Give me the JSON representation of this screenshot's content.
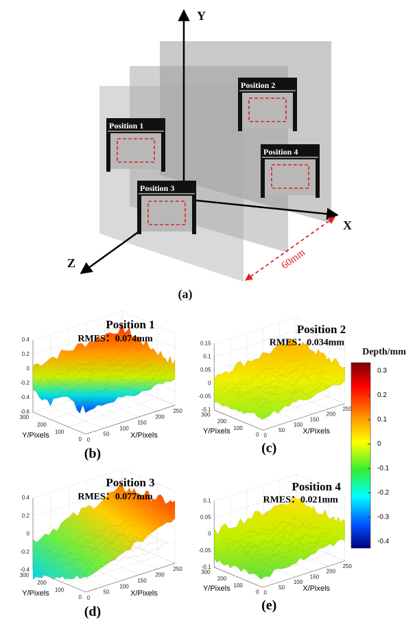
{
  "diagram": {
    "axes": {
      "y": "Y",
      "x": "X",
      "z": "Z"
    },
    "positions": [
      "Position 1",
      "Position 2",
      "Position 3",
      "Position 4"
    ],
    "distance": "60mm",
    "caption": "(a)"
  },
  "panels": [
    {
      "title": "Position 1",
      "rmes": "RMES：0.074mm",
      "zticks": [
        "0.4",
        "0.2",
        "0",
        "-0.2",
        "-0.4",
        "-0.6"
      ],
      "yticks": [
        "300",
        "200",
        "100",
        "0"
      ],
      "xticks": [
        "0",
        "50",
        "100",
        "150",
        "200",
        "250"
      ],
      "ylabel": "Y/Pixels",
      "xlabel": "X/Pixels",
      "caption": "(b)"
    },
    {
      "title": "Position 2",
      "rmes": "RMES：0.034mm",
      "zticks": [
        "0.15",
        "0.1",
        "0.05",
        "0",
        "-0.05",
        "-0.1"
      ],
      "yticks": [
        "300",
        "200",
        "100",
        "0"
      ],
      "xticks": [
        "0",
        "50",
        "100",
        "150",
        "200",
        "250"
      ],
      "ylabel": "Y/Pixels",
      "xlabel": "X/Pixels",
      "caption": "(c)"
    },
    {
      "title": "Position 3",
      "rmes": "RMES：0.077mm",
      "zticks": [
        "0.4",
        "0.2",
        "0",
        "-0.2",
        "-0.4"
      ],
      "yticks": [
        "300",
        "200",
        "100",
        "0"
      ],
      "xticks": [
        "0",
        "50",
        "100",
        "150",
        "200",
        "250"
      ],
      "ylabel": "Y/Pixels",
      "xlabel": "X/Pixels",
      "caption": "(d)"
    },
    {
      "title": "Position 4",
      "rmes": "RMES：0.021mm",
      "zticks": [
        "0.1",
        "0.05",
        "0",
        "-0.05",
        "-0.1"
      ],
      "yticks": [
        "300",
        "200",
        "100",
        "0"
      ],
      "xticks": [
        "0",
        "50",
        "100",
        "150",
        "200",
        "250"
      ],
      "ylabel": "Y/Pixels",
      "xlabel": "X/Pixels",
      "caption": "(e)"
    }
  ],
  "colorbar": {
    "label": "Depth/mm",
    "ticks": [
      "0.3",
      "0.2",
      "0.1",
      "0",
      "-0.1",
      "-0.2",
      "-0.3",
      "-0.4"
    ]
  }
}
